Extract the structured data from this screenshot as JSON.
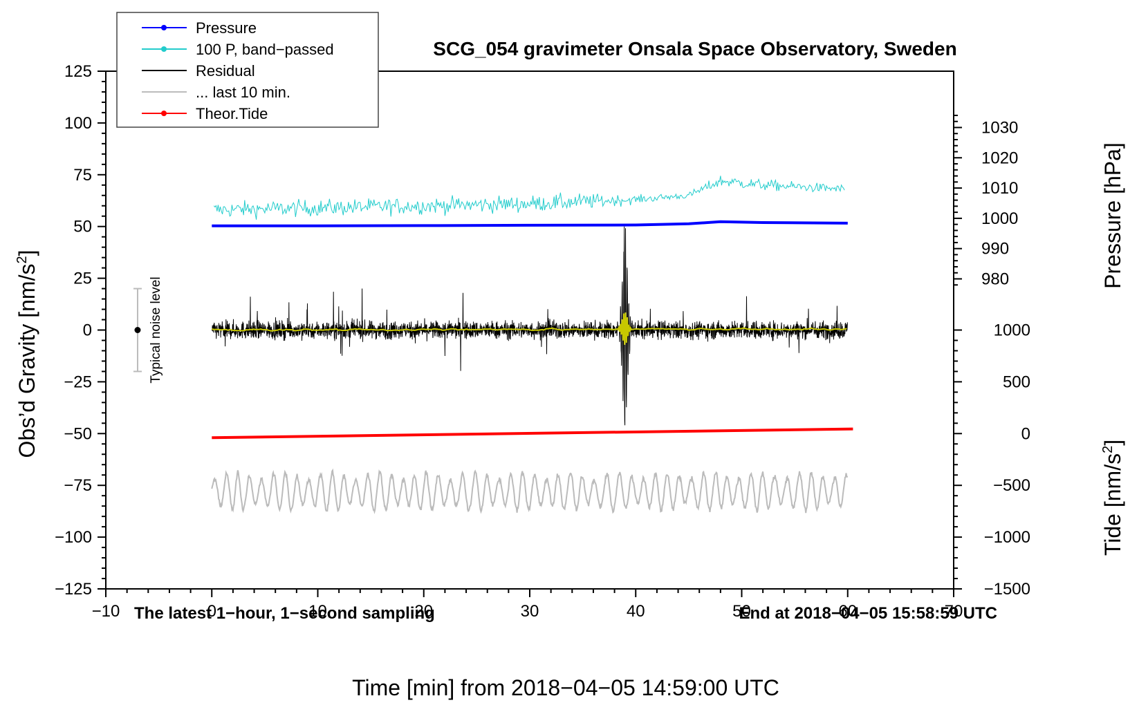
{
  "chart_data": {
    "type": "line",
    "title": "SCG_054 gravimeter Onsala Space Observatory, Sweden",
    "xlabel": "Time [min] from 2018−04−05 14:59:00 UTC",
    "ylabel_left_prefix": "Obs’d Gravity [nm/s",
    "ylabel_right_pressure": "Pressure [hPa]",
    "ylabel_right_tide_prefix": "Tide [nm/s",
    "unit_superscript": "2",
    "unit_suffix": "]",
    "xlim": [
      -10,
      70
    ],
    "ylim": [
      -125,
      125
    ],
    "x_ticks": [
      -10,
      0,
      10,
      20,
      30,
      40,
      50,
      60,
      70
    ],
    "x_tick_labels": [
      "−10",
      "0",
      "10",
      "20",
      "30",
      "40",
      "50",
      "60",
      "70"
    ],
    "y_ticks": [
      125,
      100,
      75,
      50,
      25,
      0,
      -25,
      -50,
      -75,
      -100,
      -125
    ],
    "y_tick_labels": [
      "125",
      "100",
      "75",
      "50",
      "25",
      "0",
      "−25",
      "−50",
      "−75",
      "−100",
      "−125"
    ],
    "pressure_axis": {
      "ticks": [
        1030,
        1020,
        1010,
        1000,
        990,
        980
      ],
      "tick_labels": [
        "1030",
        "1020",
        "1010",
        "1000",
        "990",
        "980"
      ],
      "value_at_gravity_50": 997.3,
      "value_at_gravity_25": 980.2
    },
    "tide_axis": {
      "ticks": [
        1000,
        500,
        0,
        -500,
        -1000,
        -1500
      ],
      "tick_labels": [
        "1000",
        "500",
        "0",
        "−500",
        "−1000",
        "−1500"
      ],
      "value_at_gravity_minus_125": -1500,
      "value_at_gravity_minus_50": 0
    },
    "annotations": {
      "left": "The latest 1−hour, 1−second sampling",
      "right": "End at 2018−04−05 15:58:59 UTC",
      "noise_label": "Typical noise level"
    },
    "noise_bar": {
      "x": -7,
      "center": 0,
      "half_range": 20
    },
    "legend": {
      "position": "top-left",
      "entries": [
        {
          "label": "Pressure",
          "color": "#0000ff",
          "marker": true
        },
        {
          "label": "100 P, band−passed",
          "color": "#22cccc",
          "marker": true
        },
        {
          "label": "Residual",
          "color": "#000000",
          "marker": false
        },
        {
          "label": "... last 10 min.",
          "color": "#bbbbbb",
          "marker": false
        },
        {
          "label": "Theor.Tide",
          "color": "#ff0000",
          "marker": true
        }
      ]
    },
    "series": [
      {
        "name": "Pressure",
        "color": "#0000ff",
        "x_range": [
          0,
          60
        ],
        "values_hpa": [
          997.5,
          997.5,
          997.6,
          997.7,
          997.8,
          998.2,
          998.9,
          998.6,
          998.4
        ],
        "value_x": [
          0,
          10,
          20,
          30,
          40,
          45,
          48,
          52,
          60
        ]
      },
      {
        "name": "100 P, band-passed",
        "color": "#22cccc",
        "x_range": [
          0,
          60
        ],
        "baseline": [
          [
            0,
            58
          ],
          [
            10,
            59
          ],
          [
            20,
            60
          ],
          [
            30,
            61
          ],
          [
            40,
            63
          ],
          [
            45,
            65
          ],
          [
            48,
            72
          ],
          [
            52,
            70
          ],
          [
            60,
            68
          ]
        ],
        "amplitude": [
          [
            0,
            4
          ],
          [
            35,
            4
          ],
          [
            40,
            2
          ],
          [
            45,
            1.5
          ],
          [
            48,
            3
          ],
          [
            60,
            2
          ]
        ]
      },
      {
        "name": "Residual",
        "color": "#000000",
        "x_range": [
          0,
          60
        ],
        "baseline": 0,
        "typical_amplitude": 5,
        "event_time": 39,
        "event_peak": [
          50,
          -46
        ]
      },
      {
        "name": "Residual smoothed",
        "color": "#c8c800",
        "x_range": [
          0,
          60
        ],
        "baseline": 0
      },
      {
        "name": "... last 10 min.",
        "color": "#bbbbbb",
        "x_range": [
          0,
          60
        ],
        "baseline": -78,
        "amplitude": 8
      },
      {
        "name": "Theor.Tide",
        "color": "#ff0000",
        "x": [
          0,
          60.5
        ],
        "values_nm_s2": [
          -40,
          45
        ]
      }
    ]
  }
}
